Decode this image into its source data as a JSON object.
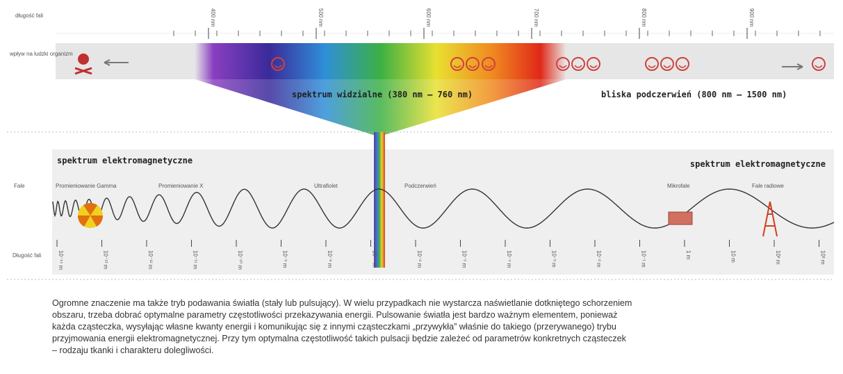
{
  "top_axis": {
    "label": "długość fali",
    "ticks": [
      "400 nm",
      "500 nm",
      "600 nm",
      "700 nm",
      "800 nm",
      "900 nm"
    ]
  },
  "effect_label": "wpływ na ludzki organizm",
  "visible_label": "spektrum widzialne (380 nm – 760 nm)",
  "nir_label": "bliska podczerwień (800 nm – 1500 nm)",
  "spectrum_left": "spektrum elektromagnetyczne",
  "spectrum_right": "spektrum elektromagnetyczne",
  "waves_label": "Fale",
  "wave_types": [
    "Promieniowanie Gamma",
    "Promieniowanie X",
    "Ultrafiolet",
    "Podczerwień",
    "Mikrofale",
    "Fale radiowe"
  ],
  "bottom_axis": {
    "label": "Długość fali",
    "ticks": [
      "10⁻¹⁴ m",
      "10⁻¹³ m",
      "10⁻¹² m",
      "10⁻¹¹ m",
      "10⁻¹⁰ m",
      "10⁻⁹ m",
      "10⁻⁸ m",
      "10⁻⁷ m",
      "10⁻⁶ m",
      "10⁻⁵ m",
      "10⁻⁴ m",
      "10⁻³ m",
      "10⁻² m",
      "10⁻¹ m",
      "1 m",
      "10 m",
      "10² m",
      "10³ m"
    ]
  },
  "paragraph": {
    "lines": [
      "Ogromne znaczenie ma także tryb podawania światła (stały lub pulsujący). W wielu przypadkach nie wystarcza naświetlanie dotkniętego schorzeniem",
      "obszaru, trzeba dobrać optymalne parametry częstotliwości przekazywania energii. Pulsowanie światła jest bardzo ważnym elementem, ponieważ",
      "każda cząsteczka, wysyłając własne kwanty energii i komunikując się z innymi cząsteczkami „przywykła” właśnie do takiego (przerywanego) trybu",
      "przyjmowania energii elektromagnetycznej. Przy tym optymalna częstotliwość takich pulsacji będzie zależeć od parametrów konkretnych cząsteczek",
      "– rodzaju tkanki i charakteru dolegliwości."
    ]
  }
}
